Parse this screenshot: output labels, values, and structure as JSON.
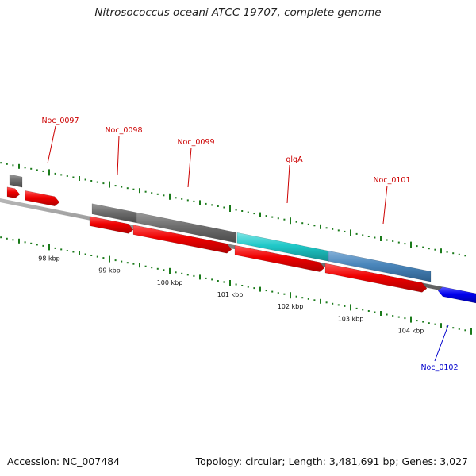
{
  "title": "Nitrosococcus oceani ATCC 19707, complete genome",
  "footer": {
    "accession": "Accession: NC_007484",
    "summary": "Topology: circular; Length: 3,481,691 bp; Genes: 3,027"
  },
  "colors": {
    "backbone": "#8c8c8c",
    "tick": "#1a7a1a",
    "cds_forward": "#ee0000",
    "cds_reverse": "#0000ee",
    "gene_gray": "#6e6e6e",
    "gene_cyan": "#20c8c8",
    "gene_steel": "#4a86bb",
    "label_red": "#cc0000",
    "label_blue": "#0000cc"
  },
  "ruler": {
    "labels": [
      "98 kbp",
      "99 kbp",
      "100 kbp",
      "101 kbp",
      "102 kbp",
      "103 kbp",
      "104 kbp"
    ]
  },
  "genes": [
    {
      "name": "Noc_0097",
      "strand": "forward"
    },
    {
      "name": "Noc_0098",
      "strand": "forward"
    },
    {
      "name": "Noc_0099",
      "strand": "forward"
    },
    {
      "name": "glgA",
      "strand": "forward"
    },
    {
      "name": "Noc_0101",
      "strand": "forward"
    },
    {
      "name": "Noc_0102",
      "strand": "reverse"
    }
  ]
}
